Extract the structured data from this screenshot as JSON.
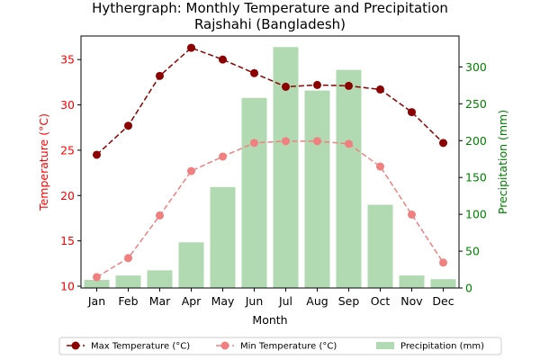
{
  "chart_data": {
    "type": "bar",
    "title": "Hythergraph: Monthly Temperature and Precipitation",
    "subtitle": "Rajshahi (Bangladesh)",
    "xlabel": "Month",
    "ylabel_left": "Temperature (°C)",
    "ylabel_right": "Precipitation (mm)",
    "categories": [
      "Jan",
      "Feb",
      "Mar",
      "Apr",
      "May",
      "Jun",
      "Jul",
      "Aug",
      "Sep",
      "Oct",
      "Nov",
      "Dec"
    ],
    "ylim_left": [
      9.8,
      37.6
    ],
    "ylim_right": [
      0,
      342
    ],
    "yticks_left": [
      10,
      15,
      20,
      25,
      30,
      35
    ],
    "yticks_right": [
      0,
      50,
      100,
      150,
      200,
      250,
      300
    ],
    "grid": false,
    "legend_position": "bottom",
    "series": [
      {
        "name": "Max Temperature (°C)",
        "axis": "left",
        "kind": "line",
        "style": "dashed",
        "color": "#8b0000",
        "values": [
          24.5,
          27.7,
          33.2,
          36.3,
          35.0,
          33.5,
          32.0,
          32.2,
          32.1,
          31.7,
          29.2,
          25.8
        ]
      },
      {
        "name": "Min Temperature (°C)",
        "axis": "left",
        "kind": "line",
        "style": "dashed",
        "color": "#f08080",
        "values": [
          11.0,
          13.1,
          17.8,
          22.7,
          24.3,
          25.8,
          26.0,
          26.0,
          25.7,
          23.2,
          17.9,
          12.6
        ]
      },
      {
        "name": "Precipitation (mm)",
        "axis": "right",
        "kind": "bar",
        "color": "#b2dab2",
        "values": [
          11,
          17,
          24,
          62,
          137,
          258,
          327,
          268,
          296,
          113,
          17,
          12
        ]
      }
    ],
    "colors": {
      "left_axis": "#ff0000",
      "right_axis": "#008000"
    }
  }
}
